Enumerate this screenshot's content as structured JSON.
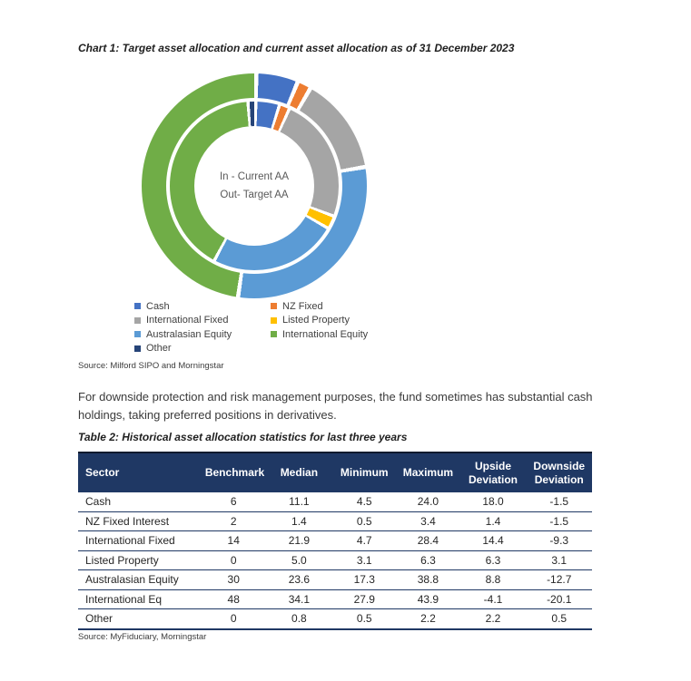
{
  "chart_section": {
    "title": "Chart 1: Target asset allocation and current asset allocation as of 31 December 2023",
    "center_label_line1": "In - Current AA",
    "center_label_line2": "Out- Target AA",
    "source": "Source: Milford SIPO and Morningstar"
  },
  "chart_data": {
    "type": "donut",
    "title": "Chart 1: Target asset allocation and current asset allocation as of 31 December 2023",
    "categories": [
      "Cash",
      "NZ Fixed",
      "International Fixed",
      "Listed Property",
      "Australasian Equity",
      "International Equity",
      "Other"
    ],
    "series": [
      {
        "name": "Current AA (inner ring)",
        "values": [
          4.5,
          2,
          24,
          2.5,
          24.5,
          41,
          1.5
        ]
      },
      {
        "name": "Target AA (outer ring)",
        "values": [
          6,
          2,
          14,
          0,
          30,
          48,
          0
        ]
      }
    ],
    "colors": [
      "#4472C4",
      "#ED7D31",
      "#A5A5A5",
      "#FFC000",
      "#5B9BD5",
      "#70AD47",
      "#264478"
    ],
    "center_labels": [
      "In - Current AA",
      "Out- Target AA"
    ],
    "legend_position": "bottom",
    "start_angle_deg": 0,
    "direction": "clockwise"
  },
  "legend": {
    "columns": [
      [
        {
          "label": "Cash",
          "color": "#4472C4"
        },
        {
          "label": "International Fixed",
          "color": "#A5A5A5"
        },
        {
          "label": "Australasian Equity",
          "color": "#5B9BD5"
        },
        {
          "label": "Other",
          "color": "#264478"
        }
      ],
      [
        {
          "label": "NZ Fixed",
          "color": "#ED7D31"
        },
        {
          "label": "Listed Property",
          "color": "#FFC000"
        },
        {
          "label": "International Equity",
          "color": "#70AD47"
        }
      ]
    ]
  },
  "paragraph": "For downside protection and risk management purposes, the fund sometimes has substantial cash holdings, taking preferred positions in derivatives.",
  "table_section": {
    "title": "Table 2: Historical asset allocation statistics for last three years",
    "header_bg": "#1F3864",
    "headers": [
      "Sector",
      "Benchmark",
      "Median",
      "Minimum",
      "Maximum",
      "Upside Deviation",
      "Downside Deviation"
    ],
    "rows": [
      [
        "Cash",
        "6",
        "11.1",
        "4.5",
        "24.0",
        "18.0",
        "-1.5"
      ],
      [
        "NZ Fixed Interest",
        "2",
        "1.4",
        "0.5",
        "3.4",
        "1.4",
        "-1.5"
      ],
      [
        "International Fixed",
        "14",
        "21.9",
        "4.7",
        "28.4",
        "14.4",
        "-9.3"
      ],
      [
        "Listed Property",
        "0",
        "5.0",
        "3.1",
        "6.3",
        "6.3",
        "3.1"
      ],
      [
        "Australasian Equity",
        "30",
        "23.6",
        "17.3",
        "38.8",
        "8.8",
        "-12.7"
      ],
      [
        "International Eq",
        "48",
        "34.1",
        "27.9",
        "43.9",
        "-4.1",
        "-20.1"
      ],
      [
        "Other",
        "0",
        "0.8",
        "0.5",
        "2.2",
        "2.2",
        "0.5"
      ]
    ],
    "source": "Source: MyFiduciary, Morningstar"
  }
}
